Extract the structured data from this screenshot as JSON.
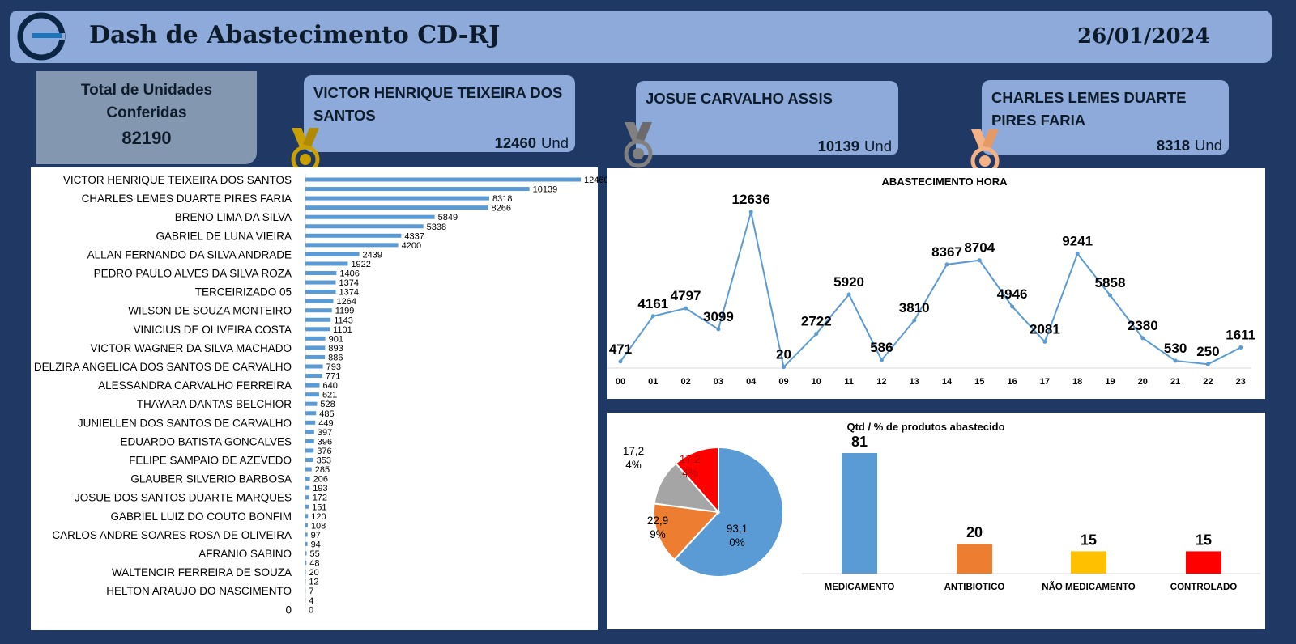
{
  "header": {
    "title": "Dash de Abastecimento CD-RJ",
    "date": "26/01/2024"
  },
  "total": {
    "label": "Total de Unidades Conferidas",
    "value": "82190"
  },
  "ranking": [
    {
      "name": "VICTOR HENRIQUE TEIXEIRA DOS SANTOS",
      "value": "12460",
      "unit": "Und",
      "medal": "gold-medal-icon",
      "color": "#c9a000"
    },
    {
      "name": "JOSUE CARVALHO ASSIS",
      "value": "10139",
      "unit": "Und",
      "medal": "silver-medal-icon",
      "color": "#808080"
    },
    {
      "name": "CHARLES LEMES DUARTE PIRES FARIA",
      "value": "8318",
      "unit": "Und",
      "medal": "bronze-medal-icon",
      "color": "#f4b183"
    }
  ],
  "colors": {
    "bar_blue": "#5b9bd5",
    "orange": "#ed7d31",
    "gray": "#a5a5a5",
    "red": "#ff0000",
    "yellow": "#ffc000"
  },
  "chart_data": [
    {
      "type": "bar",
      "orientation": "horizontal",
      "title": "",
      "categories": [
        "VICTOR HENRIQUE TEIXEIRA DOS SANTOS",
        "",
        "CHARLES LEMES DUARTE PIRES FARIA",
        "",
        "BRENO LIMA DA SILVA",
        "",
        "GABRIEL DE LUNA VIEIRA",
        "",
        "ALLAN FERNANDO DA SILVA ANDRADE",
        "",
        "PEDRO PAULO ALVES DA SILVA ROZA",
        "",
        "TERCEIRIZADO 05",
        "",
        "WILSON DE SOUZA MONTEIRO",
        "",
        "VINICIUS DE OLIVEIRA COSTA",
        "",
        "VICTOR WAGNER DA SILVA MACHADO",
        "",
        "DELZIRA ANGELICA DOS SANTOS DE CARVALHO",
        "",
        "ALESSANDRA CARVALHO FERREIRA",
        "",
        "THAYARA DANTAS BELCHIOR",
        "",
        "JUNIELLEN DOS SANTOS DE CARVALHO",
        "",
        "EDUARDO BATISTA GONCALVES",
        "",
        "FELIPE SAMPAIO DE AZEVEDO",
        "",
        "GLAUBER SILVERIO BARBOSA",
        "",
        "JOSUE DOS SANTOS DUARTE MARQUES",
        "",
        "GABRIEL LUIZ DO COUTO BONFIM",
        "",
        "CARLOS ANDRE SOARES ROSA DE OLIVEIRA",
        "",
        "AFRANIO SABINO",
        "",
        "WALTENCIR FERREIRA DE SOUZA",
        "",
        "HELTON ARAUJO DO NASCIMENTO",
        "",
        "0"
      ],
      "values": [
        12460,
        10139,
        8318,
        8266,
        5849,
        5338,
        4337,
        4200,
        2439,
        1922,
        1406,
        1374,
        1374,
        1264,
        1199,
        1143,
        1101,
        901,
        893,
        886,
        793,
        771,
        640,
        621,
        528,
        485,
        449,
        397,
        396,
        376,
        353,
        285,
        206,
        193,
        172,
        151,
        120,
        108,
        97,
        94,
        55,
        48,
        20,
        12,
        7,
        4,
        0
      ],
      "xlim": [
        0,
        12460
      ]
    },
    {
      "type": "line",
      "title": "ABASTECIMENTO HORA",
      "categories": [
        "00",
        "01",
        "02",
        "03",
        "04",
        "09",
        "10",
        "11",
        "12",
        "13",
        "14",
        "15",
        "16",
        "17",
        "18",
        "19",
        "20",
        "21",
        "22",
        "23"
      ],
      "values": [
        471,
        4161,
        4797,
        3099,
        12636,
        20,
        2722,
        5920,
        586,
        3810,
        8367,
        8704,
        4946,
        2081,
        9241,
        5858,
        2380,
        530,
        250,
        1611
      ],
      "ylim": [
        0,
        12636
      ]
    },
    {
      "type": "pie",
      "title": "Qtd / % de produtos abastecido",
      "slices": [
        {
          "label_top": "93,1",
          "label_bottom": "0%",
          "value": 93.1,
          "color": "#5b9bd5"
        },
        {
          "label_top": "22,9",
          "label_bottom": "9%",
          "value": 22.9,
          "color": "#ed7d31"
        },
        {
          "label_top": "17,2",
          "label_bottom": "4%",
          "value": 17.2,
          "color": "#a5a5a5"
        },
        {
          "label_top": "17,2",
          "label_bottom": "4%",
          "value": 17.2,
          "color": "#ff0000"
        }
      ]
    },
    {
      "type": "bar",
      "categories": [
        "MEDICAMENTO",
        "ANTIBIOTICO",
        "NÃO MEDICAMENTO",
        "CONTROLADO"
      ],
      "values": [
        81,
        20,
        15,
        15
      ],
      "colors": [
        "#5b9bd5",
        "#ed7d31",
        "#ffc000",
        "#ff0000"
      ],
      "ylim": [
        0,
        81
      ]
    }
  ]
}
